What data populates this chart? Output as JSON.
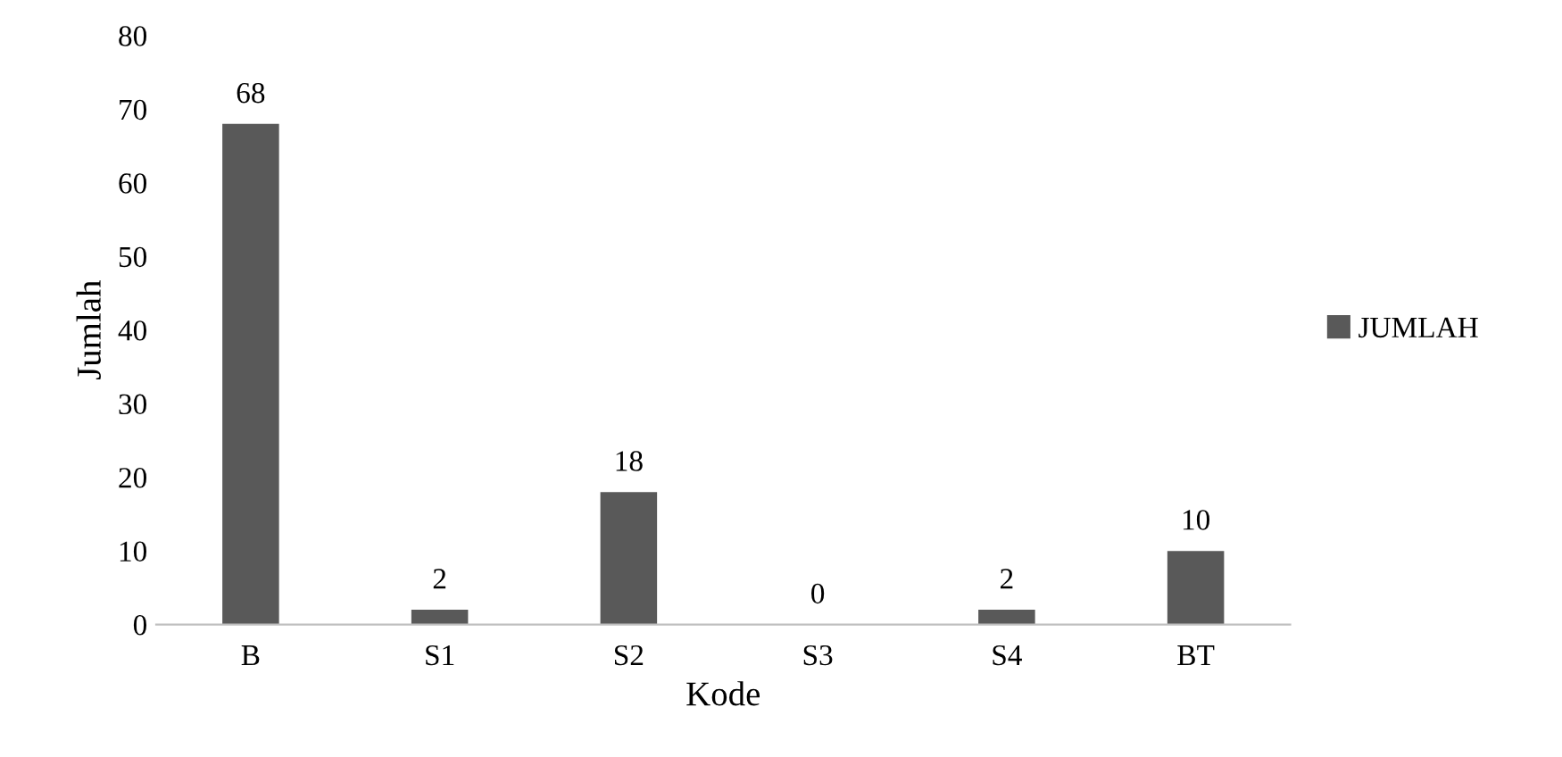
{
  "chart_data": {
    "type": "bar",
    "xlabel": "Kode",
    "ylabel": "Jumlah",
    "categories": [
      "B",
      "S1",
      "S2",
      "S3",
      "S4",
      "BT"
    ],
    "series": [
      {
        "name": "JUMLAH",
        "color": "#595959",
        "values": [
          68,
          2,
          18,
          0,
          2,
          10
        ]
      }
    ],
    "ylim": [
      0,
      80
    ],
    "yticks": [
      0,
      10,
      20,
      30,
      40,
      50,
      60,
      70,
      80
    ],
    "grid": false,
    "legend": "right",
    "data_labels": true
  }
}
